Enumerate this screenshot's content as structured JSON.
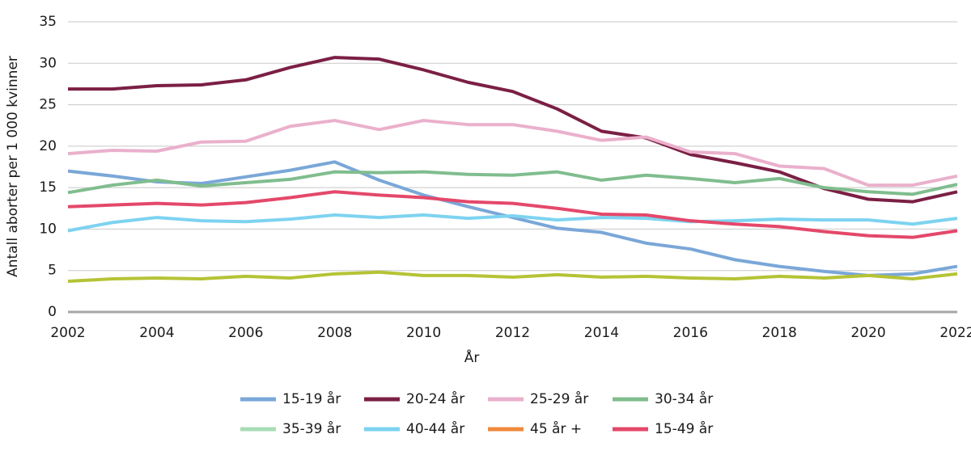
{
  "chart_data": {
    "type": "line",
    "xlabel": "År",
    "ylabel": "Antall aborter per 1 000 kvinner",
    "x": [
      2002,
      2003,
      2004,
      2005,
      2006,
      2007,
      2008,
      2009,
      2010,
      2011,
      2012,
      2013,
      2014,
      2015,
      2016,
      2017,
      2018,
      2019,
      2020,
      2021,
      2022
    ],
    "xlim": [
      2002,
      2022
    ],
    "xticks": [
      2002,
      2004,
      2006,
      2008,
      2010,
      2012,
      2014,
      2016,
      2018,
      2020,
      2022
    ],
    "ylim": [
      0,
      35
    ],
    "yticks": [
      0,
      5,
      10,
      15,
      20,
      25,
      30,
      35
    ],
    "grid": true,
    "legend": "bottom",
    "series": [
      {
        "name": "15-19 år",
        "color": "#7aa7d8",
        "values": [
          17.0,
          16.4,
          15.7,
          15.5,
          16.3,
          17.1,
          18.1,
          15.9,
          14.1,
          12.7,
          11.4,
          10.1,
          9.6,
          8.3,
          7.6,
          6.3,
          5.5,
          4.9,
          4.4,
          4.6,
          5.5
        ]
      },
      {
        "name": "20-24 år",
        "color": "#7b1f45",
        "values": [
          26.9,
          26.9,
          27.3,
          27.4,
          28.0,
          29.5,
          30.7,
          30.5,
          29.2,
          27.7,
          26.6,
          24.5,
          21.8,
          21.0,
          19.0,
          18.0,
          16.9,
          14.9,
          13.6,
          13.3,
          14.5
        ]
      },
      {
        "name": "25-29 år",
        "color": "#eab0cc",
        "values": [
          19.1,
          19.5,
          19.4,
          20.5,
          20.6,
          22.4,
          23.1,
          22.0,
          23.1,
          22.6,
          22.6,
          21.8,
          20.7,
          21.1,
          19.3,
          19.1,
          17.6,
          17.3,
          15.3,
          15.3,
          16.4
        ]
      },
      {
        "name": "30-34 år",
        "color": "#80bd8e",
        "values": [
          14.4,
          15.3,
          15.9,
          15.2,
          15.6,
          16.0,
          16.9,
          16.8,
          16.9,
          16.6,
          16.5,
          16.9,
          15.9,
          16.5,
          16.1,
          15.6,
          16.1,
          15.0,
          14.5,
          14.2,
          15.4
        ]
      },
      {
        "name": "35-39 år",
        "color": "#a8dcb6",
        "values": [
          null,
          null,
          null,
          null,
          null,
          null,
          null,
          null,
          null,
          null,
          null,
          null,
          null,
          null,
          null,
          null,
          null,
          null,
          null,
          null,
          null
        ]
      },
      {
        "name": "40-44 år",
        "color": "#7dd3f0",
        "values": [
          9.8,
          10.8,
          11.4,
          11.0,
          10.9,
          11.2,
          11.7,
          11.4,
          11.7,
          11.3,
          11.6,
          11.1,
          11.4,
          11.3,
          10.9,
          11.0,
          11.2,
          11.1,
          11.1,
          10.6,
          11.3
        ]
      },
      {
        "name": "45 år +",
        "color": "#f08a3c",
        "line_color": "#b5c335",
        "values": [
          3.7,
          4.0,
          4.1,
          4.0,
          4.3,
          4.1,
          4.6,
          4.8,
          4.4,
          4.4,
          4.2,
          4.5,
          4.2,
          4.3,
          4.1,
          4.0,
          4.3,
          4.1,
          4.4,
          4.0,
          4.6
        ]
      },
      {
        "name": "15-49 år",
        "color": "#e4486a",
        "values": [
          12.7,
          12.9,
          13.1,
          12.9,
          13.2,
          13.8,
          14.5,
          14.1,
          13.8,
          13.3,
          13.1,
          12.5,
          11.8,
          11.7,
          11.0,
          10.6,
          10.3,
          9.7,
          9.2,
          9.0,
          9.8
        ]
      }
    ]
  }
}
